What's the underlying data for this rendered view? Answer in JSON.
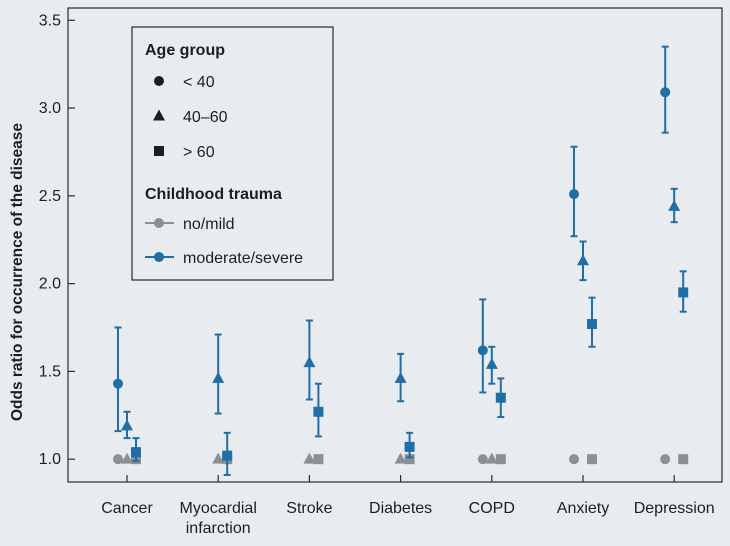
{
  "chart_data": {
    "type": "scatter",
    "ylabel": "Odds ratio for occurrence of the disease",
    "xlabel": "",
    "ylim": [
      0.87,
      3.57
    ],
    "yticks": [
      "1.0",
      "1.5",
      "2.0",
      "2.5",
      "3.0",
      "3.5"
    ],
    "ytick_values": [
      1.0,
      1.5,
      2.0,
      2.5,
      3.0,
      3.5
    ],
    "categories": [
      {
        "lines": [
          "Cancer"
        ]
      },
      {
        "lines": [
          "Myocardial",
          "infarction"
        ]
      },
      {
        "lines": [
          "Stroke"
        ]
      },
      {
        "lines": [
          "Diabetes"
        ]
      },
      {
        "lines": [
          "COPD"
        ]
      },
      {
        "lines": [
          "Anxiety"
        ]
      },
      {
        "lines": [
          "Depression"
        ]
      }
    ],
    "colors": {
      "no_mild": "#8d8f91",
      "moderate_severe": "#1c6fa8",
      "text": "#1e1e1e"
    },
    "legend": {
      "position": "top-left",
      "age_title": "Age group",
      "age_items": [
        {
          "label": "< 40",
          "marker": "circle"
        },
        {
          "label": "40–60",
          "marker": "triangle"
        },
        {
          "label": "> 60",
          "marker": "square"
        }
      ],
      "trauma_title": "Childhood trauma",
      "trauma_items": [
        {
          "label": "no/mild",
          "group": "no_mild"
        },
        {
          "label": "moderate/severe",
          "group": "moderate_severe"
        }
      ]
    },
    "series": [
      {
        "name": "no/mild, < 40",
        "marker": "circle",
        "group": "no_mild",
        "offset": -1,
        "values": [
          1.0,
          null,
          null,
          null,
          1.0,
          1.0,
          1.0
        ]
      },
      {
        "name": "no/mild, 40–60",
        "marker": "triangle",
        "group": "no_mild",
        "offset": 0,
        "values": [
          1.0,
          1.0,
          1.0,
          1.0,
          1.0,
          null,
          null
        ]
      },
      {
        "name": "no/mild, > 60",
        "marker": "square",
        "group": "no_mild",
        "offset": 1,
        "values": [
          1.0,
          1.0,
          1.0,
          1.0,
          1.0,
          1.0,
          1.0
        ]
      },
      {
        "name": "moderate/severe, < 40",
        "marker": "circle",
        "group": "moderate_severe",
        "offset": -1,
        "values": [
          1.43,
          null,
          null,
          null,
          1.62,
          2.51,
          3.09
        ],
        "lower": [
          1.16,
          null,
          null,
          null,
          1.38,
          2.27,
          2.86
        ],
        "upper": [
          1.75,
          null,
          null,
          null,
          1.91,
          2.78,
          3.35
        ]
      },
      {
        "name": "moderate/severe, 40–60",
        "marker": "triangle",
        "group": "moderate_severe",
        "offset": 0,
        "values": [
          1.19,
          1.46,
          1.55,
          1.46,
          1.54,
          2.13,
          2.44
        ],
        "lower": [
          1.12,
          1.26,
          1.34,
          1.33,
          1.43,
          2.02,
          2.35
        ],
        "upper": [
          1.27,
          1.71,
          1.79,
          1.6,
          1.64,
          2.24,
          2.54
        ]
      },
      {
        "name": "moderate/severe, > 60",
        "marker": "square",
        "group": "moderate_severe",
        "offset": 1,
        "values": [
          1.04,
          1.02,
          1.27,
          1.07,
          1.35,
          1.77,
          1.95
        ],
        "lower": [
          0.99,
          0.91,
          1.13,
          1.01,
          1.24,
          1.64,
          1.84
        ],
        "upper": [
          1.12,
          1.15,
          1.43,
          1.15,
          1.46,
          1.92,
          2.07
        ]
      }
    ]
  }
}
